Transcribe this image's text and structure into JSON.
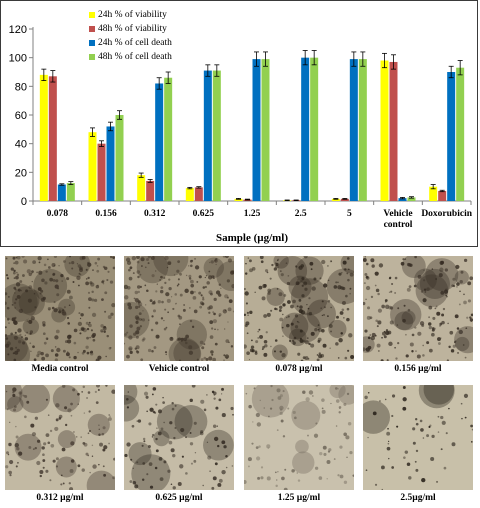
{
  "chart_data": {
    "type": "bar",
    "xlabel": "Sample (µg/ml)",
    "ylabel": "",
    "ylim": [
      0,
      120
    ],
    "yticks": [
      0,
      20,
      40,
      60,
      80,
      100,
      120
    ],
    "grid": false,
    "legend_position": "top-left",
    "categories": [
      "0.078",
      "0.156",
      "0.312",
      "0.625",
      "1.25",
      "2.5",
      "5",
      "Vehicle control",
      "Doxorubicin"
    ],
    "category_lines": [
      [
        "0.078"
      ],
      [
        "0.156"
      ],
      [
        "0.312"
      ],
      [
        "0.625"
      ],
      [
        "1.25"
      ],
      [
        "2.5"
      ],
      [
        "5"
      ],
      [
        "Vehicle",
        "control"
      ],
      [
        "Doxorubicin"
      ]
    ],
    "series": [
      {
        "name": "24h % of viability",
        "color": "#ffff00",
        "values": [
          88,
          48,
          18,
          9,
          1.5,
          0.5,
          1.5,
          98,
          10
        ],
        "errors": [
          4,
          3,
          1.5,
          0.5,
          0.3,
          0.2,
          0.3,
          5,
          1.5
        ]
      },
      {
        "name": "48h % of viability",
        "color": "#c0504d",
        "values": [
          87,
          40,
          14,
          9.5,
          1,
          0.5,
          1.5,
          97,
          7
        ],
        "errors": [
          4,
          2,
          1,
          0.5,
          0.3,
          0.2,
          0.3,
          5,
          0.5
        ]
      },
      {
        "name": "24h % of cell death",
        "color": "#0070c0",
        "values": [
          11.5,
          52,
          82,
          91,
          99,
          100,
          99,
          2,
          90
        ],
        "errors": [
          0.5,
          3,
          4,
          4,
          5,
          5,
          5,
          0.5,
          4
        ]
      },
      {
        "name": "48h % of cell death",
        "color": "#92d050",
        "values": [
          12.5,
          60,
          86,
          91,
          99,
          100,
          99,
          2.5,
          93
        ],
        "errors": [
          1,
          3,
          4,
          4,
          5,
          5,
          5,
          0.5,
          5
        ]
      }
    ]
  },
  "images": [
    {
      "caption": "Media control",
      "palette": "media"
    },
    {
      "caption": "Vehicle  control",
      "palette": "vehicle"
    },
    {
      "caption": "0.078 µg/ml",
      "palette": "dense"
    },
    {
      "caption": "0.156 µg/ml",
      "palette": "dense2"
    },
    {
      "caption": "0.312 µg/ml",
      "palette": "sparse"
    },
    {
      "caption": "0.625 µg/ml",
      "palette": "sparse2"
    },
    {
      "caption": "1.25  µg/ml",
      "palette": "faint"
    },
    {
      "caption": "2.5µg/ml",
      "palette": "clump"
    }
  ]
}
